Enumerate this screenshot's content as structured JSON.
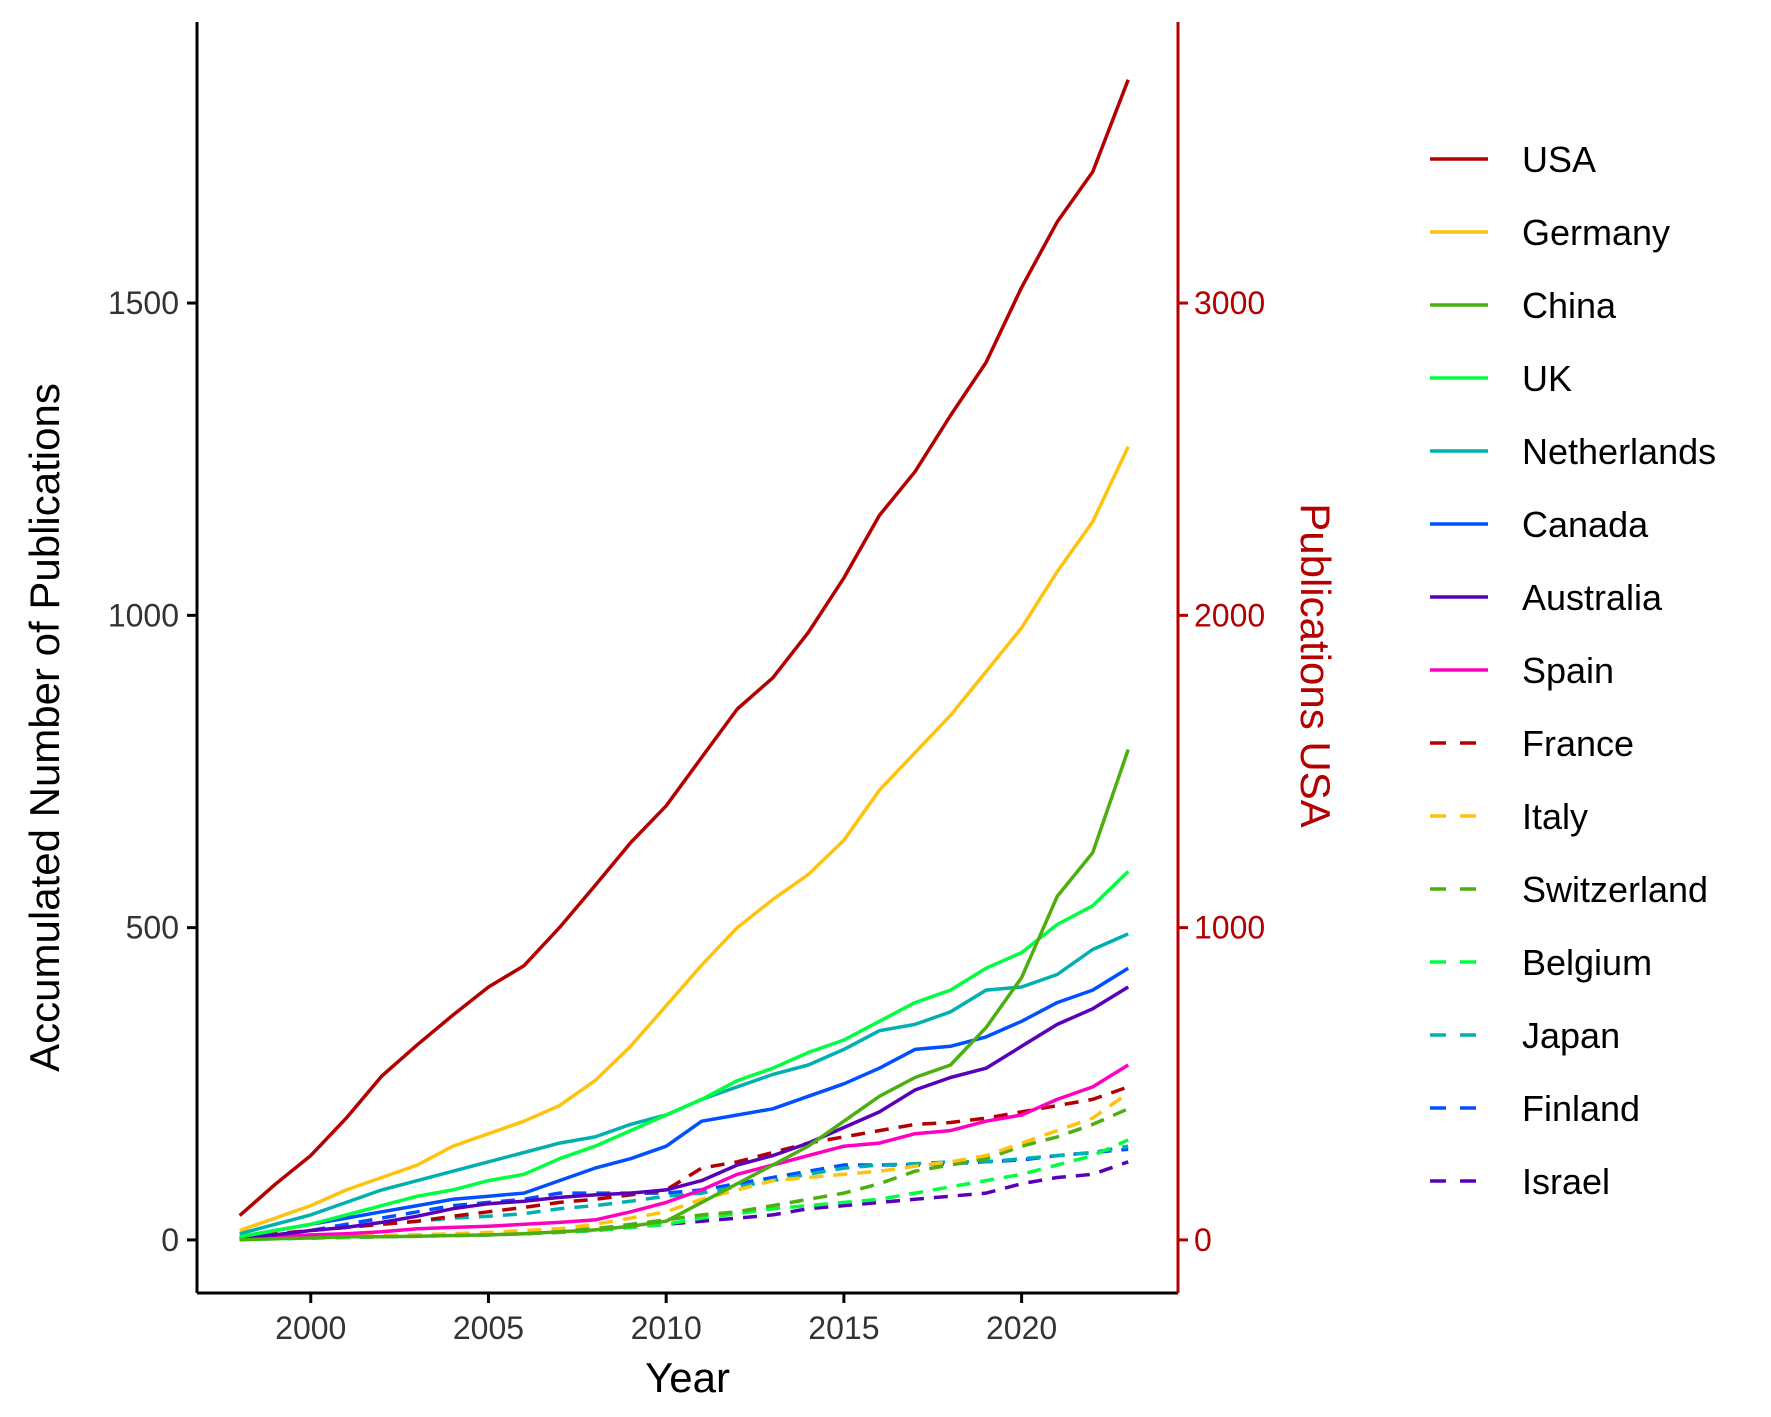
{
  "chart_data": {
    "type": "line",
    "xlabel": "Year",
    "ylabel": "Accumulated Number of Publications",
    "y2label": "Publications USA",
    "x_ticks": [
      2000,
      2005,
      2010,
      2015,
      2020
    ],
    "y_ticks": [
      0,
      500,
      1000,
      1500
    ],
    "y2_ticks": [
      0,
      1000,
      2000,
      3000
    ],
    "xlim": [
      1996.8,
      2024.4
    ],
    "ylim": [
      -85,
      1950
    ],
    "y2_scale": 2,
    "y2_color": "#b30000",
    "legend_position": "right",
    "x": [
      1998,
      1999,
      2000,
      2001,
      2002,
      2003,
      2004,
      2005,
      2006,
      2007,
      2008,
      2009,
      2010,
      2011,
      2012,
      2013,
      2014,
      2015,
      2016,
      2017,
      2018,
      2019,
      2020,
      2021,
      2022,
      2023
    ],
    "series": [
      {
        "name": "USA",
        "color": "#b30000",
        "dash": false,
        "axis": "right",
        "values": [
          78,
          178,
          270,
          390,
          525,
          625,
          720,
          810,
          878,
          1000,
          1135,
          1272,
          1390,
          1545,
          1700,
          1800,
          1945,
          2120,
          2320,
          2460,
          2640,
          2810,
          3050,
          3260,
          3420,
          3715
        ]
      },
      {
        "name": "Germany",
        "color": "#ffc20e",
        "dash": false,
        "values": [
          15,
          35,
          55,
          80,
          100,
          120,
          150,
          170,
          190,
          215,
          255,
          310,
          375,
          440,
          500,
          545,
          585,
          640,
          720,
          780,
          840,
          910,
          980,
          1070,
          1150,
          1270
        ]
      },
      {
        "name": "China",
        "color": "#4daf0f",
        "dash": false,
        "values": [
          0,
          2,
          3,
          5,
          5,
          6,
          7,
          8,
          10,
          13,
          16,
          22,
          30,
          60,
          90,
          120,
          150,
          190,
          230,
          260,
          280,
          340,
          420,
          550,
          620,
          785
        ]
      },
      {
        "name": "UK",
        "color": "#00ff40",
        "dash": false,
        "values": [
          5,
          15,
          25,
          40,
          55,
          70,
          80,
          95,
          105,
          130,
          150,
          175,
          200,
          225,
          255,
          275,
          300,
          320,
          350,
          380,
          400,
          435,
          460,
          505,
          535,
          590
        ]
      },
      {
        "name": "Netherlands",
        "color": "#00b0b0",
        "dash": false,
        "values": [
          10,
          25,
          40,
          60,
          80,
          95,
          110,
          125,
          140,
          155,
          165,
          185,
          200,
          225,
          245,
          265,
          280,
          305,
          335,
          345,
          365,
          400,
          405,
          425,
          465,
          490
        ]
      },
      {
        "name": "Canada",
        "color": "#0050ff",
        "dash": false,
        "values": [
          5,
          15,
          25,
          35,
          45,
          55,
          65,
          70,
          75,
          95,
          115,
          130,
          150,
          190,
          200,
          210,
          230,
          250,
          275,
          305,
          310,
          325,
          350,
          380,
          400,
          435
        ]
      },
      {
        "name": "Australia",
        "color": "#5a00b8",
        "dash": false,
        "values": [
          2,
          8,
          15,
          20,
          28,
          38,
          50,
          58,
          62,
          68,
          72,
          75,
          80,
          95,
          120,
          135,
          155,
          180,
          205,
          240,
          260,
          275,
          310,
          345,
          370,
          405
        ]
      },
      {
        "name": "Spain",
        "color": "#ff00c0",
        "dash": false,
        "values": [
          2,
          5,
          8,
          10,
          13,
          18,
          20,
          22,
          25,
          28,
          32,
          45,
          60,
          80,
          105,
          120,
          135,
          150,
          155,
          170,
          175,
          190,
          200,
          225,
          245,
          280
        ]
      },
      {
        "name": "France",
        "color": "#b30000",
        "dash": true,
        "values": [
          5,
          10,
          15,
          20,
          25,
          30,
          38,
          45,
          52,
          60,
          65,
          72,
          80,
          115,
          125,
          140,
          155,
          165,
          175,
          185,
          188,
          195,
          205,
          215,
          225,
          245
        ]
      },
      {
        "name": "Italy",
        "color": "#ffc20e",
        "dash": true,
        "values": [
          2,
          4,
          5,
          6,
          7,
          8,
          10,
          12,
          15,
          18,
          25,
          35,
          45,
          65,
          80,
          95,
          100,
          105,
          110,
          118,
          125,
          135,
          155,
          175,
          195,
          235
        ]
      },
      {
        "name": "Switzerland",
        "color": "#4daf0f",
        "dash": true,
        "values": [
          2,
          3,
          4,
          5,
          6,
          7,
          8,
          9,
          12,
          15,
          18,
          25,
          32,
          40,
          45,
          55,
          65,
          75,
          90,
          110,
          120,
          130,
          150,
          165,
          185,
          210
        ]
      },
      {
        "name": "Belgium",
        "color": "#00ff40",
        "dash": true,
        "values": [
          1,
          2,
          3,
          4,
          5,
          6,
          7,
          8,
          10,
          12,
          15,
          20,
          25,
          35,
          42,
          50,
          55,
          60,
          65,
          75,
          85,
          95,
          105,
          120,
          135,
          160
        ]
      },
      {
        "name": "Japan",
        "color": "#00b0b0",
        "dash": true,
        "values": [
          5,
          10,
          15,
          20,
          25,
          30,
          35,
          38,
          42,
          50,
          55,
          62,
          70,
          75,
          85,
          95,
          105,
          115,
          120,
          122,
          125,
          125,
          130,
          135,
          140,
          150
        ]
      },
      {
        "name": "Finland",
        "color": "#0050ff",
        "dash": true,
        "values": [
          3,
          8,
          15,
          25,
          35,
          45,
          55,
          60,
          65,
          75,
          75,
          75,
          75,
          80,
          90,
          100,
          110,
          120,
          120,
          120,
          122,
          125,
          128,
          135,
          140,
          145
        ]
      },
      {
        "name": "Israel",
        "color": "#5a00b8",
        "dash": true,
        "values": [
          1,
          2,
          3,
          4,
          5,
          6,
          7,
          8,
          10,
          12,
          15,
          20,
          25,
          30,
          35,
          40,
          50,
          55,
          60,
          65,
          70,
          75,
          90,
          100,
          105,
          125
        ]
      }
    ]
  }
}
